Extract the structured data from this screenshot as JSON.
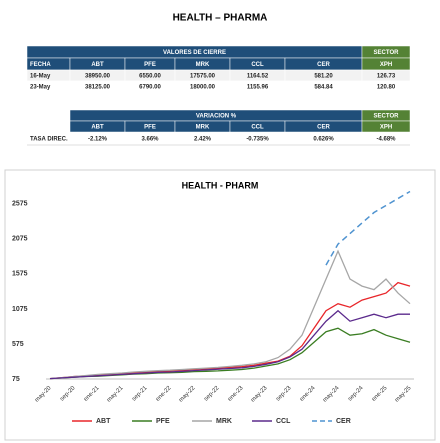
{
  "header": {
    "title": "HEALTH – PHARMA"
  },
  "closing_table": {
    "group_header": "VALORES DE CIERRE",
    "sector_header": "SECTOR",
    "columns": [
      "FECHA",
      "ABT",
      "PFE",
      "MRK",
      "CCL",
      "CER",
      "XPH"
    ],
    "rows": [
      [
        "16-May",
        "38950.00",
        "6550.00",
        "17575.00",
        "1164.52",
        "581.20",
        "126.73"
      ],
      [
        "23-May",
        "38125.00",
        "6790.00",
        "18000.00",
        "1155.96",
        "584.84",
        "120.80"
      ]
    ]
  },
  "variation_table": {
    "group_header": "VARIACION %",
    "sector_header": "SECTOR",
    "columns": [
      "ABT",
      "PFE",
      "MRK",
      "CCL",
      "CER",
      "XPH"
    ],
    "row_label": "TASA DIREC.",
    "values": [
      "-2.12%",
      "3.66%",
      "2.42%",
      "-0.735%",
      "0.626%",
      "-4.68%"
    ]
  },
  "chart_data": {
    "type": "line",
    "title": "HEALTH - PHARM",
    "categories": [
      "may-20",
      null,
      "sep-20",
      null,
      "ene-21",
      null,
      "may-21",
      null,
      "sep-21",
      null,
      "ene-22",
      null,
      "may-22",
      null,
      "sep-22",
      null,
      "ene-23",
      null,
      "may-23",
      null,
      "sep-23",
      null,
      "ene-24",
      null,
      "may-24",
      null,
      "sep-24",
      null,
      "ene-25",
      null,
      "may-25"
    ],
    "series": [
      {
        "name": "ABT",
        "color": "#e8262a",
        "dash": false,
        "values": [
          80,
          95,
          110,
          120,
          130,
          140,
          150,
          165,
          175,
          185,
          190,
          200,
          210,
          220,
          230,
          240,
          250,
          270,
          300,
          330,
          400,
          550,
          800,
          1050,
          1150,
          1100,
          1200,
          1250,
          1300,
          1450,
          1400
        ]
      },
      {
        "name": "PFE",
        "color": "#3a7d22",
        "dash": false,
        "values": [
          80,
          90,
          100,
          110,
          115,
          125,
          135,
          145,
          150,
          160,
          165,
          170,
          180,
          185,
          190,
          200,
          210,
          230,
          260,
          290,
          350,
          450,
          600,
          750,
          800,
          700,
          720,
          780,
          700,
          650,
          600
        ]
      },
      {
        "name": "MRK",
        "color": "#a6a6a6",
        "dash": false,
        "values": [
          80,
          95,
          110,
          125,
          140,
          150,
          160,
          175,
          185,
          195,
          200,
          210,
          220,
          230,
          240,
          255,
          270,
          290,
          320,
          380,
          500,
          700,
          1100,
          1500,
          1900,
          1500,
          1400,
          1350,
          1500,
          1300,
          1150
        ]
      },
      {
        "name": "CCL",
        "color": "#5b2a8c",
        "dash": false,
        "values": [
          80,
          90,
          100,
          110,
          120,
          130,
          140,
          150,
          160,
          170,
          175,
          185,
          195,
          205,
          215,
          225,
          235,
          255,
          285,
          320,
          390,
          500,
          700,
          900,
          1050,
          900,
          950,
          1000,
          950,
          1000,
          1000
        ]
      },
      {
        "name": "CER",
        "color": "#4f93d0",
        "dash": true,
        "values": [
          null,
          null,
          null,
          null,
          null,
          null,
          null,
          null,
          null,
          null,
          null,
          null,
          null,
          null,
          null,
          null,
          null,
          null,
          null,
          null,
          null,
          null,
          null,
          1700,
          2000,
          2150,
          2300,
          2450,
          2550,
          2650,
          2750
        ]
      }
    ],
    "ylim": [
      75,
      2800
    ],
    "yticks": [
      75,
      575,
      1075,
      1575,
      2075,
      2575
    ],
    "grid": false
  }
}
